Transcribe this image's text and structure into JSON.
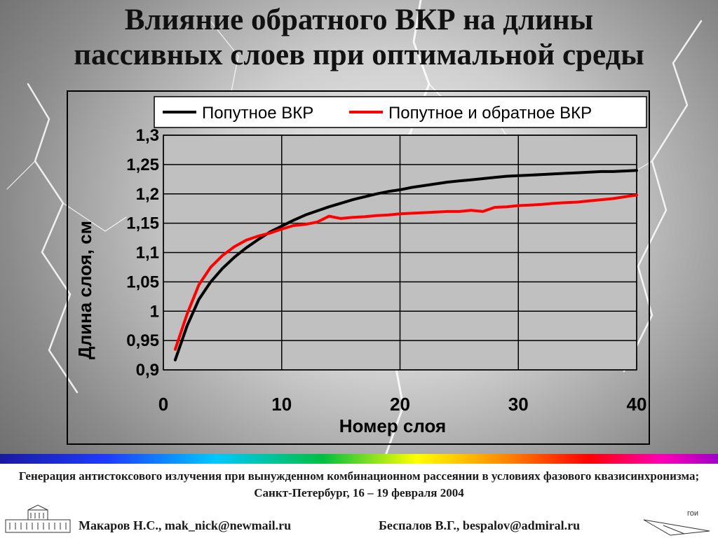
{
  "slide": {
    "title_line1": "Влияние обратного ВКР на длины",
    "title_line2": "пассивных слоев при оптимальной среды",
    "conference": "Генерация антистоксового излучения при вынужденном комбинационном рассеянии в условиях фазового квазисинхронизма; Санкт-Петербург, 16 – 19 февраля  2004",
    "author1": "Макаров Н.С., mak_nick@newmail.ru",
    "author2": "Беспалов В.Г., bespalov@admiral.ru",
    "logo_text": "гои"
  },
  "chart_data": {
    "type": "line",
    "title": "",
    "xlabel": "Номер слоя",
    "ylabel": "Длина слоя, см",
    "xlim": [
      0,
      40
    ],
    "ylim": [
      0.9,
      1.3
    ],
    "x_ticks": [
      0,
      10,
      20,
      30,
      40
    ],
    "y_ticks": [
      "0,9",
      "0,95",
      "1",
      "1,05",
      "1,1",
      "1,15",
      "1,2",
      "1,25",
      "1,3"
    ],
    "y_tick_values": [
      0.9,
      0.95,
      1.0,
      1.05,
      1.1,
      1.15,
      1.2,
      1.25,
      1.3
    ],
    "grid": true,
    "legend_position": "top",
    "series": [
      {
        "name": "Попутное ВКР",
        "color": "#000000",
        "x": [
          1,
          2,
          3,
          4,
          5,
          6,
          7,
          8,
          9,
          10,
          11,
          12,
          13,
          14,
          15,
          16,
          17,
          18,
          19,
          20,
          21,
          22,
          23,
          24,
          25,
          26,
          27,
          28,
          29,
          30,
          31,
          32,
          33,
          34,
          35,
          36,
          37,
          38,
          39,
          40
        ],
        "y": [
          0.917,
          0.975,
          1.02,
          1.05,
          1.073,
          1.092,
          1.108,
          1.122,
          1.135,
          1.145,
          1.155,
          1.164,
          1.171,
          1.178,
          1.184,
          1.19,
          1.195,
          1.2,
          1.204,
          1.207,
          1.211,
          1.214,
          1.217,
          1.22,
          1.222,
          1.224,
          1.226,
          1.228,
          1.23,
          1.231,
          1.232,
          1.233,
          1.234,
          1.235,
          1.236,
          1.237,
          1.238,
          1.238,
          1.239,
          1.24
        ]
      },
      {
        "name": "Попутное и обратное ВКР",
        "color": "#ff0000",
        "x": [
          1,
          2,
          3,
          4,
          5,
          6,
          7,
          8,
          9,
          10,
          11,
          12,
          13,
          14,
          15,
          16,
          17,
          18,
          19,
          20,
          21,
          22,
          23,
          24,
          25,
          26,
          27,
          28,
          29,
          30,
          31,
          32,
          33,
          34,
          35,
          36,
          37,
          38,
          39,
          40
        ],
        "y": [
          0.935,
          0.995,
          1.045,
          1.075,
          1.095,
          1.11,
          1.121,
          1.128,
          1.133,
          1.14,
          1.146,
          1.148,
          1.152,
          1.162,
          1.158,
          1.16,
          1.161,
          1.163,
          1.164,
          1.166,
          1.167,
          1.168,
          1.169,
          1.17,
          1.17,
          1.172,
          1.17,
          1.177,
          1.178,
          1.18,
          1.181,
          1.182,
          1.184,
          1.185,
          1.186,
          1.188,
          1.19,
          1.192,
          1.195,
          1.198
        ]
      }
    ]
  },
  "colors": {
    "accent_black": "#000000",
    "accent_red": "#ff0000"
  }
}
